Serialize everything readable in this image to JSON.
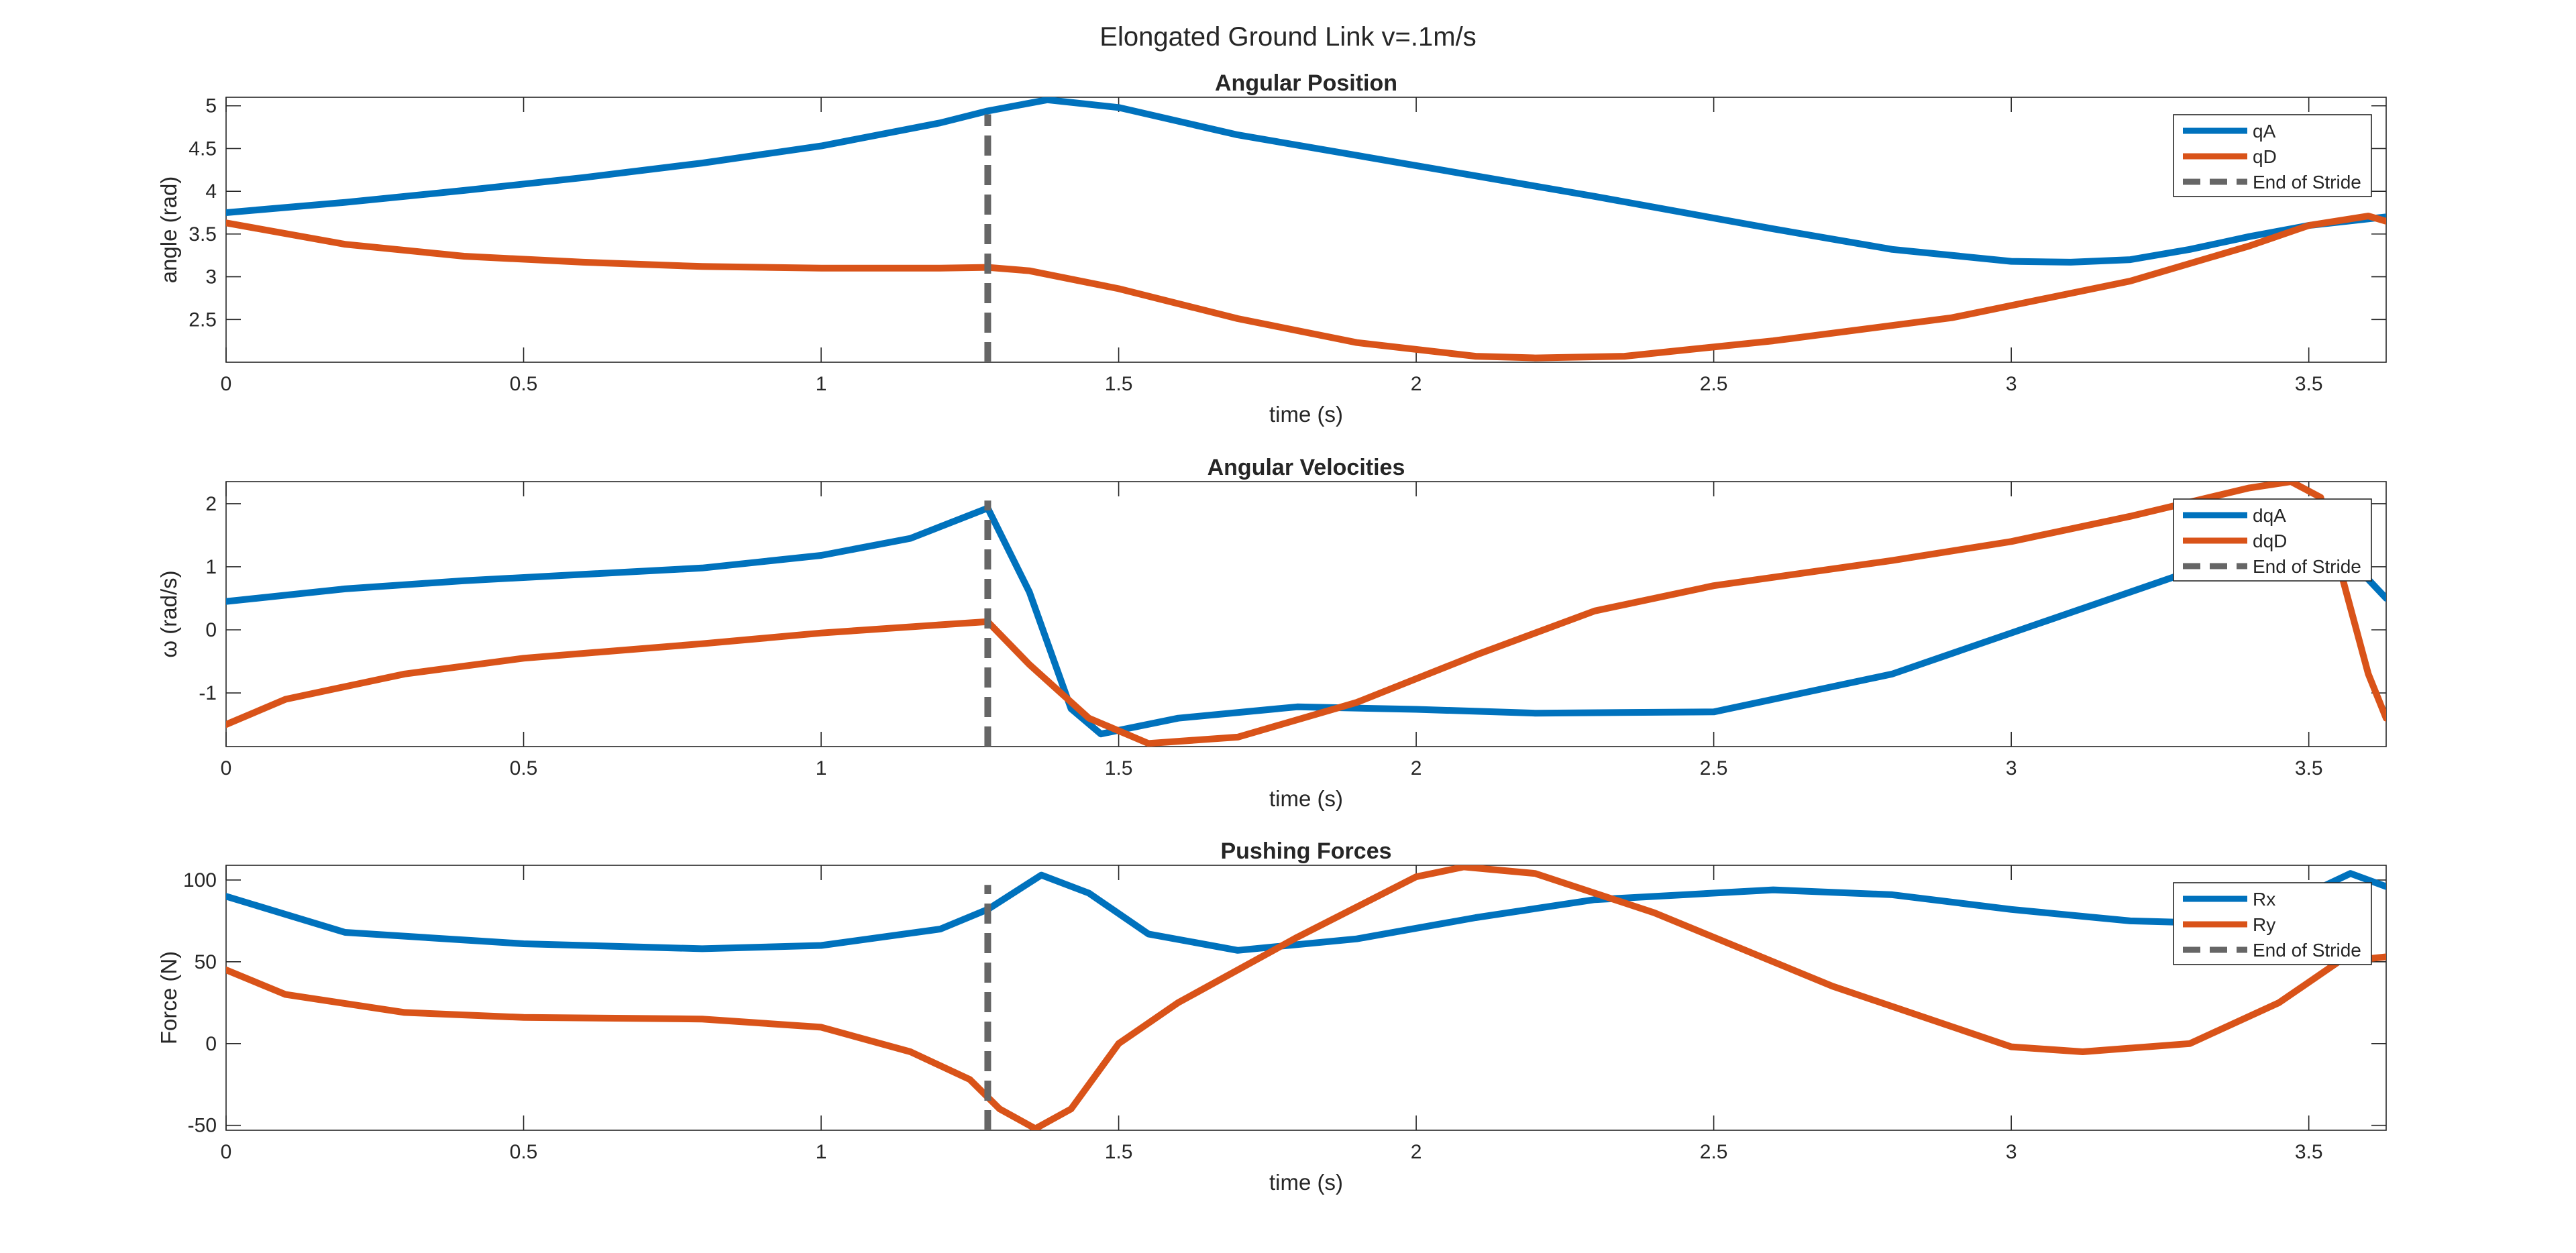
{
  "figure": {
    "title": "Elongated Ground Link v=.1m/s"
  },
  "colors": {
    "blue": "#0072BD",
    "orange": "#D95319",
    "stride": "#666666",
    "axis": "#262626",
    "legend_border": "#262626"
  },
  "chart_data": [
    {
      "type": "line",
      "title": "Angular Position",
      "xlabel": "time (s)",
      "ylabel": "angle (rad)",
      "xlim": [
        0,
        3.63
      ],
      "ylim": [
        2.0,
        5.1
      ],
      "xticks": [
        0,
        0.5,
        1,
        1.5,
        2,
        2.5,
        3,
        3.5
      ],
      "xtick_labels": [
        "0",
        "0.5",
        "1",
        "1.5",
        "2",
        "2.5",
        "3",
        "3.5"
      ],
      "yticks": [
        2.5,
        3,
        3.5,
        4,
        4.5,
        5
      ],
      "ytick_labels": [
        "2.5",
        "3",
        "3.5",
        "4",
        "4.5",
        "5"
      ],
      "grid": false,
      "legend_position": "top-right",
      "stride_line": {
        "name": "End of Stride",
        "x": 1.28,
        "y_range": [
          2.0,
          4.9
        ]
      },
      "series": [
        {
          "name": "qA",
          "color": "#0072BD",
          "x": [
            0,
            0.2,
            0.4,
            0.6,
            0.8,
            1.0,
            1.2,
            1.28,
            1.38,
            1.5,
            1.7,
            2.0,
            2.3,
            2.6,
            2.8,
            3.0,
            3.1,
            3.2,
            3.3,
            3.4,
            3.5,
            3.63
          ],
          "y": [
            3.75,
            3.87,
            4.01,
            4.16,
            4.33,
            4.53,
            4.8,
            4.94,
            5.07,
            4.98,
            4.66,
            4.3,
            3.94,
            3.56,
            3.32,
            3.18,
            3.17,
            3.2,
            3.32,
            3.47,
            3.6,
            3.7
          ]
        },
        {
          "name": "qD",
          "color": "#D95319",
          "x": [
            0,
            0.2,
            0.4,
            0.6,
            0.8,
            1.0,
            1.2,
            1.28,
            1.35,
            1.5,
            1.7,
            1.9,
            2.1,
            2.2,
            2.35,
            2.6,
            2.9,
            3.2,
            3.4,
            3.5,
            3.6,
            3.63
          ],
          "y": [
            3.63,
            3.38,
            3.24,
            3.17,
            3.12,
            3.1,
            3.1,
            3.11,
            3.07,
            2.86,
            2.51,
            2.23,
            2.07,
            2.05,
            2.07,
            2.25,
            2.52,
            2.95,
            3.36,
            3.6,
            3.71,
            3.65
          ]
        }
      ]
    },
    {
      "type": "line",
      "title": "Angular Velocities",
      "xlabel": "time (s)",
      "ylabel": "ω (rad/s)",
      "xlim": [
        0,
        3.63
      ],
      "ylim": [
        -1.85,
        2.35
      ],
      "xticks": [
        0,
        0.5,
        1,
        1.5,
        2,
        2.5,
        3,
        3.5
      ],
      "xtick_labels": [
        "0",
        "0.5",
        "1",
        "1.5",
        "2",
        "2.5",
        "3",
        "3.5"
      ],
      "yticks": [
        -1,
        0,
        1,
        2
      ],
      "ytick_labels": [
        "-1",
        "0",
        "1",
        "2"
      ],
      "grid": false,
      "legend_position": "top-right",
      "stride_line": {
        "name": "End of Stride",
        "x": 1.28,
        "y_range": [
          -1.85,
          2.05
        ]
      },
      "series": [
        {
          "name": "dqA",
          "color": "#0072BD",
          "x": [
            0,
            0.2,
            0.4,
            0.6,
            0.8,
            1.0,
            1.15,
            1.28,
            1.35,
            1.42,
            1.47,
            1.6,
            1.8,
            2.0,
            2.2,
            2.5,
            2.8,
            3.0,
            3.2,
            3.4,
            3.5,
            3.6,
            3.63
          ],
          "y": [
            0.45,
            0.65,
            0.78,
            0.88,
            0.98,
            1.18,
            1.45,
            1.93,
            0.6,
            -1.25,
            -1.65,
            -1.4,
            -1.22,
            -1.26,
            -1.32,
            -1.3,
            -0.7,
            -0.05,
            0.6,
            1.25,
            1.45,
            0.8,
            0.5
          ]
        },
        {
          "name": "dqD",
          "color": "#D95319",
          "x": [
            0,
            0.1,
            0.3,
            0.5,
            0.8,
            1.0,
            1.2,
            1.28,
            1.35,
            1.45,
            1.55,
            1.7,
            1.9,
            2.1,
            2.3,
            2.5,
            2.8,
            3.0,
            3.2,
            3.4,
            3.47,
            3.52,
            3.6,
            3.63
          ],
          "y": [
            -1.5,
            -1.1,
            -0.7,
            -0.45,
            -0.22,
            -0.05,
            0.08,
            0.13,
            -0.55,
            -1.4,
            -1.8,
            -1.7,
            -1.15,
            -0.4,
            0.3,
            0.7,
            1.1,
            1.4,
            1.8,
            2.25,
            2.35,
            2.1,
            -0.7,
            -1.4
          ]
        }
      ]
    },
    {
      "type": "line",
      "title": "Pushing Forces",
      "xlabel": "time (s)",
      "ylabel": "Force (N)",
      "xlim": [
        0,
        3.63
      ],
      "ylim": [
        -53,
        109
      ],
      "xticks": [
        0,
        0.5,
        1,
        1.5,
        2,
        2.5,
        3,
        3.5
      ],
      "xtick_labels": [
        "0",
        "0.5",
        "1",
        "1.5",
        "2",
        "2.5",
        "3",
        "3.5"
      ],
      "yticks": [
        -50,
        0,
        50,
        100
      ],
      "ytick_labels": [
        "-50",
        "0",
        "50",
        "100"
      ],
      "grid": false,
      "legend_position": "top-right",
      "stride_line": {
        "name": "End of Stride",
        "x": 1.28,
        "y_range": [
          -53,
          97
        ]
      },
      "series": [
        {
          "name": "Rx",
          "color": "#0072BD",
          "x": [
            0,
            0.2,
            0.5,
            0.8,
            1.0,
            1.2,
            1.28,
            1.37,
            1.45,
            1.55,
            1.7,
            1.9,
            2.1,
            2.3,
            2.6,
            2.8,
            3.0,
            3.2,
            3.4,
            3.5,
            3.57,
            3.63
          ],
          "y": [
            90,
            68,
            61,
            58,
            60,
            70,
            82,
            103,
            92,
            67,
            57,
            64,
            77,
            88,
            94,
            91,
            82,
            75,
            73,
            92,
            104,
            96
          ]
        },
        {
          "name": "Ry",
          "color": "#D95319",
          "x": [
            0,
            0.1,
            0.3,
            0.5,
            0.8,
            1.0,
            1.15,
            1.25,
            1.3,
            1.36,
            1.42,
            1.5,
            1.6,
            1.8,
            2.0,
            2.08,
            2.2,
            2.4,
            2.7,
            3.0,
            3.12,
            3.3,
            3.45,
            3.55,
            3.63
          ],
          "y": [
            45,
            30,
            19,
            16,
            15,
            10,
            -5,
            -22,
            -40,
            -52,
            -40,
            0,
            25,
            65,
            102,
            108,
            104,
            80,
            35,
            -2,
            -5,
            0,
            25,
            50,
            53
          ]
        }
      ]
    }
  ]
}
